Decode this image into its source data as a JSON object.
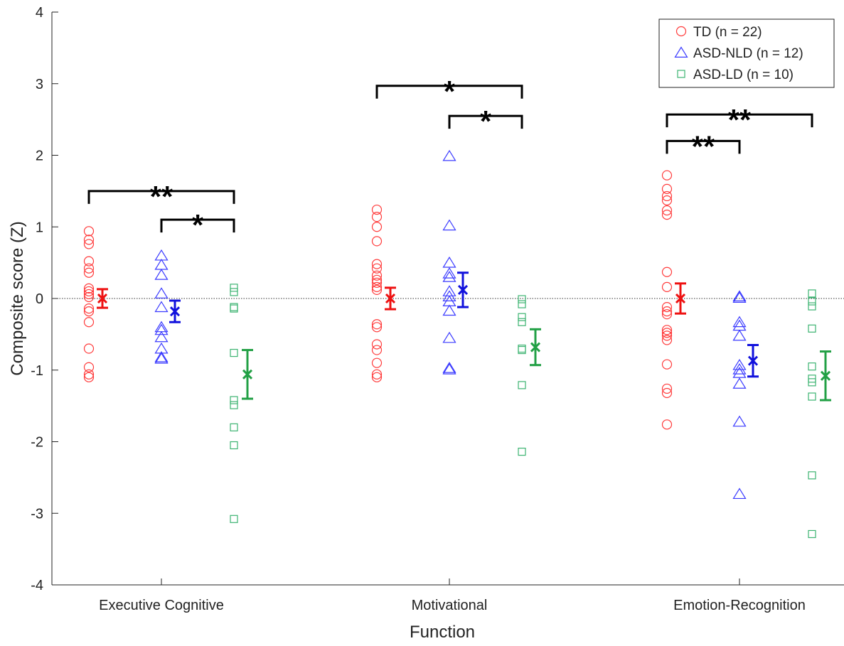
{
  "chart_data": {
    "type": "scatter",
    "xlabel": "Function",
    "ylabel": "Composite score (Z)",
    "ylim": [
      -4,
      4
    ],
    "yticks": [
      4,
      3,
      2,
      1,
      0,
      -1,
      -2,
      -3,
      -4
    ],
    "ytick_labels": [
      "4",
      "3",
      "2",
      "1",
      "0",
      "-1",
      "-2",
      "-3",
      "-4"
    ],
    "categories": [
      "Executive Cognitive",
      "Motivational",
      "Emotion-Recognition"
    ],
    "reference_line": 0,
    "legend": {
      "position": "top-right",
      "entries": [
        {
          "label": "TD (n = 22)",
          "marker": "circle",
          "color": "#ff3b3b"
        },
        {
          "label": "ASD-NLD (n = 12)",
          "marker": "triangle",
          "color": "#3b3bff"
        },
        {
          "label": "ASD-LD (n = 10)",
          "marker": "square",
          "color": "#3cb371"
        }
      ]
    },
    "groups": [
      {
        "name": "TD (n = 22)",
        "marker": "circle",
        "color": "#ff3b3b",
        "summary_color": "#ee1111",
        "points": [
          [
            0.94,
            0.82,
            0.76,
            0.52,
            0.42,
            0.36,
            0.14,
            0.1,
            0.06,
            0.02,
            -0.14,
            -0.18,
            -0.33,
            -0.7,
            -0.96,
            -1.06,
            -1.1
          ],
          [
            1.24,
            1.14,
            1.0,
            0.8,
            0.48,
            0.42,
            0.32,
            0.26,
            0.22,
            0.16,
            0.12,
            -0.36,
            -0.4,
            -0.64,
            -0.72,
            -0.9,
            -1.06,
            -1.1
          ],
          [
            1.72,
            1.53,
            1.43,
            1.37,
            1.23,
            1.17,
            0.37,
            0.16,
            -0.12,
            -0.18,
            -0.22,
            -0.44,
            -0.48,
            -0.52,
            -0.58,
            -0.92,
            -1.26,
            -1.32,
            -1.76
          ]
        ],
        "means": [
          0.0,
          0.0,
          0.0
        ],
        "sem": [
          0.13,
          0.15,
          0.21
        ]
      },
      {
        "name": "ASD-NLD (n = 12)",
        "marker": "triangle",
        "color": "#3b3bff",
        "summary_color": "#1111dd",
        "points": [
          [
            0.6,
            0.47,
            0.33,
            0.07,
            -0.12,
            -0.4,
            -0.44,
            -0.54,
            -0.7,
            -0.82,
            -0.84
          ],
          [
            1.99,
            1.02,
            0.5,
            0.35,
            0.3,
            0.1,
            0.03,
            -0.04,
            -0.17,
            -0.55,
            -0.97,
            -0.99
          ],
          [
            0.03,
            0.01,
            -0.33,
            -0.38,
            -0.52,
            -0.93,
            -0.99,
            -1.04,
            -1.19,
            -1.72,
            -2.73
          ]
        ],
        "means": [
          -0.18,
          0.12,
          -0.87
        ],
        "sem": [
          0.15,
          0.24,
          0.22
        ]
      },
      {
        "name": "ASD-LD (n = 10)",
        "marker": "square",
        "color": "#3cb371",
        "summary_color": "#22a045",
        "points": [
          [
            0.15,
            0.09,
            -0.12,
            -0.14,
            -0.76,
            -1.42,
            -1.49,
            -1.8,
            -2.05,
            -3.08
          ],
          [
            -0.01,
            -0.08,
            -0.26,
            -0.33,
            -0.7,
            -0.72,
            -1.21,
            -2.14
          ],
          [
            0.07,
            -0.04,
            -0.11,
            -0.42,
            -0.95,
            -1.12,
            -1.17,
            -1.37,
            -2.47,
            -3.29
          ]
        ],
        "means": [
          -1.06,
          -0.68,
          -1.08
        ],
        "sem": [
          0.34,
          0.25,
          0.34
        ]
      }
    ],
    "significance": [
      {
        "category": 0,
        "from": 0,
        "to": 2,
        "y": 1.5,
        "label": "**"
      },
      {
        "category": 0,
        "from": 1,
        "to": 2,
        "y": 1.1,
        "label": "*"
      },
      {
        "category": 1,
        "from": 0,
        "to": 2,
        "y": 2.97,
        "label": "*"
      },
      {
        "category": 1,
        "from": 1,
        "to": 2,
        "y": 2.55,
        "label": "*"
      },
      {
        "category": 2,
        "from": 0,
        "to": 2,
        "y": 2.57,
        "label": "**"
      },
      {
        "category": 2,
        "from": 0,
        "to": 1,
        "y": 2.2,
        "label": "**"
      }
    ]
  }
}
